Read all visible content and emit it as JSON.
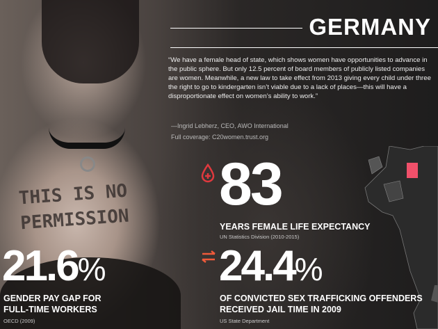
{
  "title": "GERMANY",
  "quote": {
    "text": "“We have a female head of state, which shows women have opportunities to advance in the public sphere. But only 12.5 percent of board members of publicly listed companies are women. Meanwhile, a new law to take effect from 2013 giving every child under three the right to go to kindergarten isn’t viable due to a lack of places—this will have a disproportionate effect on women’s ability to work.”",
    "attribution": "—Ingrid Lebherz, CEO, AWO International",
    "coverage": "Full coverage: C20women.trust.org"
  },
  "photo_writing": [
    "THIS IS NO",
    "PERMISSION"
  ],
  "stats": [
    {
      "value": "83",
      "unit": "",
      "label": "YEARS FEMALE LIFE EXPECTANCY",
      "source": "UN Statistics Division (2010-2015)",
      "icon": "blood-drop-plus-icon"
    },
    {
      "value": "21.6",
      "unit": "%",
      "label": "GENDER PAY GAP FOR FULL-TIME WORKERS",
      "source": "OECD (2009)",
      "icon": ""
    },
    {
      "value": "24.4",
      "unit": "%",
      "label": "OF CONVICTED SEX TRAFFICKING OFFENDERS RECEIVED JAIL TIME IN 2009",
      "source": "US State Department",
      "icon": "exchange-arrows-icon"
    }
  ],
  "colors": {
    "accent": "#e0393e",
    "map_highlight": "#f0506a",
    "arrows": "#ef5a3a"
  }
}
